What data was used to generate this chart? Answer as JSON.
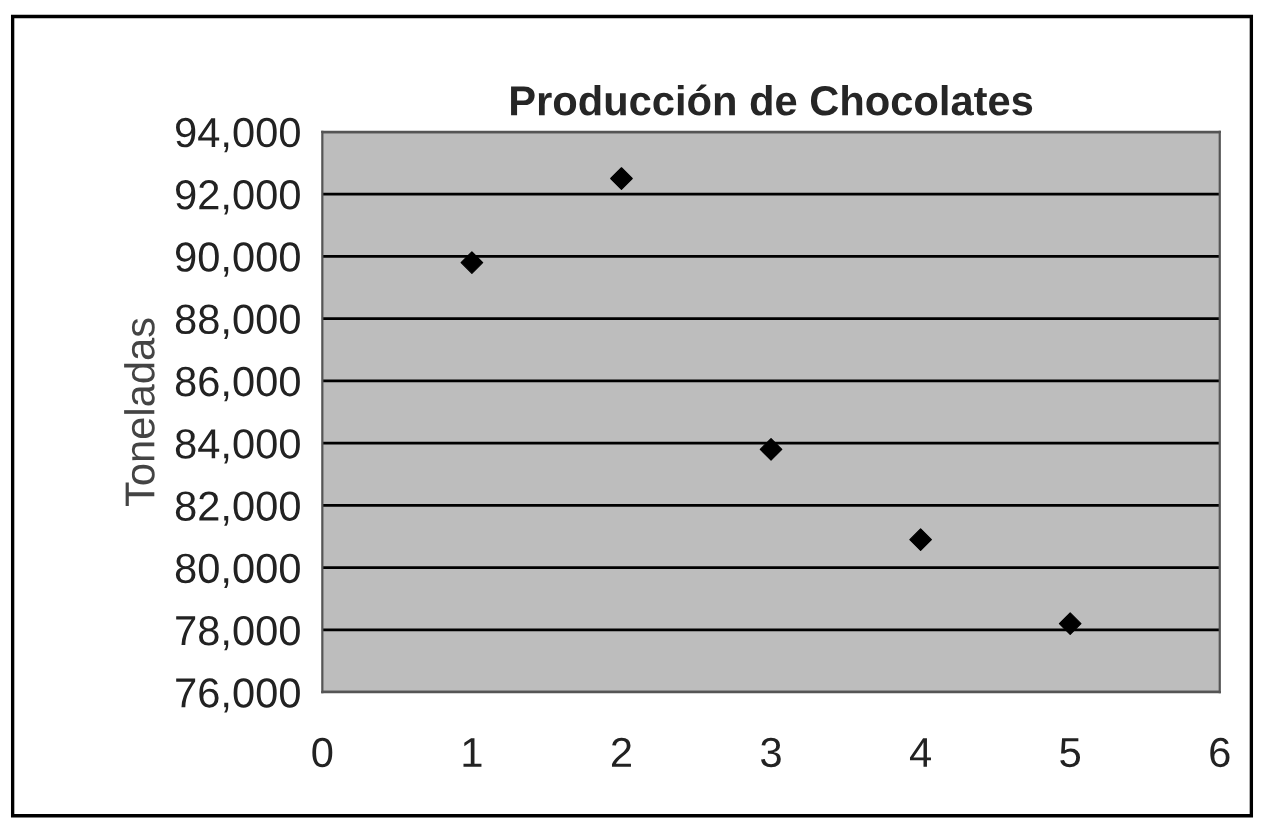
{
  "chart_data": {
    "type": "scatter",
    "title": "Producción de Chocolates",
    "ylabel": "Toneladas",
    "x": [
      1,
      2,
      3,
      4,
      5
    ],
    "series": [
      {
        "color": "#000000",
        "values": [
          89800,
          92500,
          83800,
          80900,
          78200
        ]
      }
    ],
    "xlim": [
      0,
      6
    ],
    "xticks": [
      0,
      1,
      2,
      3,
      4,
      5,
      6
    ],
    "ylim": [
      76000,
      94000
    ],
    "yticks": [
      {
        "value": 76000,
        "label": "76,000"
      },
      {
        "value": 78000,
        "label": "78,000"
      },
      {
        "value": 80000,
        "label": "80,000"
      },
      {
        "value": 82000,
        "label": "82,000"
      },
      {
        "value": 84000,
        "label": "84,000"
      },
      {
        "value": 86000,
        "label": "86,000"
      },
      {
        "value": 88000,
        "label": "88,000"
      },
      {
        "value": 90000,
        "label": "90,000"
      },
      {
        "value": 92000,
        "label": "92,000"
      },
      {
        "value": 94000,
        "label": "94,000"
      }
    ],
    "grid": "y",
    "marker": "diamond",
    "legend": false
  }
}
